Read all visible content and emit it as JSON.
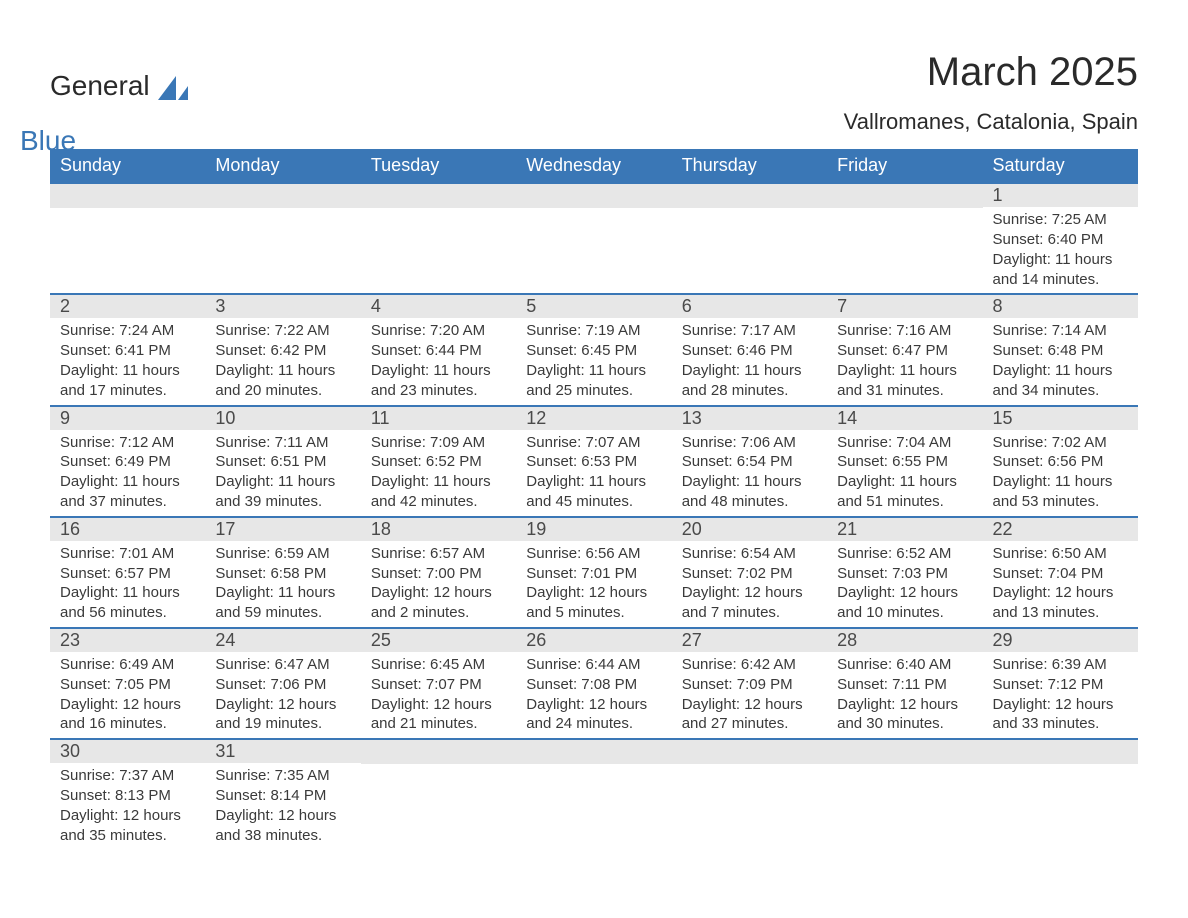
{
  "logo": {
    "text1": "General",
    "text2": "Blue",
    "shape_color": "#3a77b6"
  },
  "title": "March 2025",
  "subtitle": "Vallromanes, Catalonia, Spain",
  "styling": {
    "header_bg": "#3a77b6",
    "header_text_color": "#ffffff",
    "daynum_bg": "#e7e7e7",
    "daynum_color": "#4a4a4a",
    "row_border_color": "#3a77b6",
    "body_text_color": "#3a3a3a",
    "background_color": "#ffffff",
    "title_fontsize": 40,
    "subtitle_fontsize": 22,
    "weekday_fontsize": 18,
    "detail_fontsize": 15
  },
  "weekdays": [
    "Sunday",
    "Monday",
    "Tuesday",
    "Wednesday",
    "Thursday",
    "Friday",
    "Saturday"
  ],
  "weeks": [
    [
      {
        "day": "",
        "sunrise": "",
        "sunset": "",
        "daylight1": "",
        "daylight2": ""
      },
      {
        "day": "",
        "sunrise": "",
        "sunset": "",
        "daylight1": "",
        "daylight2": ""
      },
      {
        "day": "",
        "sunrise": "",
        "sunset": "",
        "daylight1": "",
        "daylight2": ""
      },
      {
        "day": "",
        "sunrise": "",
        "sunset": "",
        "daylight1": "",
        "daylight2": ""
      },
      {
        "day": "",
        "sunrise": "",
        "sunset": "",
        "daylight1": "",
        "daylight2": ""
      },
      {
        "day": "",
        "sunrise": "",
        "sunset": "",
        "daylight1": "",
        "daylight2": ""
      },
      {
        "day": "1",
        "sunrise": "Sunrise: 7:25 AM",
        "sunset": "Sunset: 6:40 PM",
        "daylight1": "Daylight: 11 hours",
        "daylight2": "and 14 minutes."
      }
    ],
    [
      {
        "day": "2",
        "sunrise": "Sunrise: 7:24 AM",
        "sunset": "Sunset: 6:41 PM",
        "daylight1": "Daylight: 11 hours",
        "daylight2": "and 17 minutes."
      },
      {
        "day": "3",
        "sunrise": "Sunrise: 7:22 AM",
        "sunset": "Sunset: 6:42 PM",
        "daylight1": "Daylight: 11 hours",
        "daylight2": "and 20 minutes."
      },
      {
        "day": "4",
        "sunrise": "Sunrise: 7:20 AM",
        "sunset": "Sunset: 6:44 PM",
        "daylight1": "Daylight: 11 hours",
        "daylight2": "and 23 minutes."
      },
      {
        "day": "5",
        "sunrise": "Sunrise: 7:19 AM",
        "sunset": "Sunset: 6:45 PM",
        "daylight1": "Daylight: 11 hours",
        "daylight2": "and 25 minutes."
      },
      {
        "day": "6",
        "sunrise": "Sunrise: 7:17 AM",
        "sunset": "Sunset: 6:46 PM",
        "daylight1": "Daylight: 11 hours",
        "daylight2": "and 28 minutes."
      },
      {
        "day": "7",
        "sunrise": "Sunrise: 7:16 AM",
        "sunset": "Sunset: 6:47 PM",
        "daylight1": "Daylight: 11 hours",
        "daylight2": "and 31 minutes."
      },
      {
        "day": "8",
        "sunrise": "Sunrise: 7:14 AM",
        "sunset": "Sunset: 6:48 PM",
        "daylight1": "Daylight: 11 hours",
        "daylight2": "and 34 minutes."
      }
    ],
    [
      {
        "day": "9",
        "sunrise": "Sunrise: 7:12 AM",
        "sunset": "Sunset: 6:49 PM",
        "daylight1": "Daylight: 11 hours",
        "daylight2": "and 37 minutes."
      },
      {
        "day": "10",
        "sunrise": "Sunrise: 7:11 AM",
        "sunset": "Sunset: 6:51 PM",
        "daylight1": "Daylight: 11 hours",
        "daylight2": "and 39 minutes."
      },
      {
        "day": "11",
        "sunrise": "Sunrise: 7:09 AM",
        "sunset": "Sunset: 6:52 PM",
        "daylight1": "Daylight: 11 hours",
        "daylight2": "and 42 minutes."
      },
      {
        "day": "12",
        "sunrise": "Sunrise: 7:07 AM",
        "sunset": "Sunset: 6:53 PM",
        "daylight1": "Daylight: 11 hours",
        "daylight2": "and 45 minutes."
      },
      {
        "day": "13",
        "sunrise": "Sunrise: 7:06 AM",
        "sunset": "Sunset: 6:54 PM",
        "daylight1": "Daylight: 11 hours",
        "daylight2": "and 48 minutes."
      },
      {
        "day": "14",
        "sunrise": "Sunrise: 7:04 AM",
        "sunset": "Sunset: 6:55 PM",
        "daylight1": "Daylight: 11 hours",
        "daylight2": "and 51 minutes."
      },
      {
        "day": "15",
        "sunrise": "Sunrise: 7:02 AM",
        "sunset": "Sunset: 6:56 PM",
        "daylight1": "Daylight: 11 hours",
        "daylight2": "and 53 minutes."
      }
    ],
    [
      {
        "day": "16",
        "sunrise": "Sunrise: 7:01 AM",
        "sunset": "Sunset: 6:57 PM",
        "daylight1": "Daylight: 11 hours",
        "daylight2": "and 56 minutes."
      },
      {
        "day": "17",
        "sunrise": "Sunrise: 6:59 AM",
        "sunset": "Sunset: 6:58 PM",
        "daylight1": "Daylight: 11 hours",
        "daylight2": "and 59 minutes."
      },
      {
        "day": "18",
        "sunrise": "Sunrise: 6:57 AM",
        "sunset": "Sunset: 7:00 PM",
        "daylight1": "Daylight: 12 hours",
        "daylight2": "and 2 minutes."
      },
      {
        "day": "19",
        "sunrise": "Sunrise: 6:56 AM",
        "sunset": "Sunset: 7:01 PM",
        "daylight1": "Daylight: 12 hours",
        "daylight2": "and 5 minutes."
      },
      {
        "day": "20",
        "sunrise": "Sunrise: 6:54 AM",
        "sunset": "Sunset: 7:02 PM",
        "daylight1": "Daylight: 12 hours",
        "daylight2": "and 7 minutes."
      },
      {
        "day": "21",
        "sunrise": "Sunrise: 6:52 AM",
        "sunset": "Sunset: 7:03 PM",
        "daylight1": "Daylight: 12 hours",
        "daylight2": "and 10 minutes."
      },
      {
        "day": "22",
        "sunrise": "Sunrise: 6:50 AM",
        "sunset": "Sunset: 7:04 PM",
        "daylight1": "Daylight: 12 hours",
        "daylight2": "and 13 minutes."
      }
    ],
    [
      {
        "day": "23",
        "sunrise": "Sunrise: 6:49 AM",
        "sunset": "Sunset: 7:05 PM",
        "daylight1": "Daylight: 12 hours",
        "daylight2": "and 16 minutes."
      },
      {
        "day": "24",
        "sunrise": "Sunrise: 6:47 AM",
        "sunset": "Sunset: 7:06 PM",
        "daylight1": "Daylight: 12 hours",
        "daylight2": "and 19 minutes."
      },
      {
        "day": "25",
        "sunrise": "Sunrise: 6:45 AM",
        "sunset": "Sunset: 7:07 PM",
        "daylight1": "Daylight: 12 hours",
        "daylight2": "and 21 minutes."
      },
      {
        "day": "26",
        "sunrise": "Sunrise: 6:44 AM",
        "sunset": "Sunset: 7:08 PM",
        "daylight1": "Daylight: 12 hours",
        "daylight2": "and 24 minutes."
      },
      {
        "day": "27",
        "sunrise": "Sunrise: 6:42 AM",
        "sunset": "Sunset: 7:09 PM",
        "daylight1": "Daylight: 12 hours",
        "daylight2": "and 27 minutes."
      },
      {
        "day": "28",
        "sunrise": "Sunrise: 6:40 AM",
        "sunset": "Sunset: 7:11 PM",
        "daylight1": "Daylight: 12 hours",
        "daylight2": "and 30 minutes."
      },
      {
        "day": "29",
        "sunrise": "Sunrise: 6:39 AM",
        "sunset": "Sunset: 7:12 PM",
        "daylight1": "Daylight: 12 hours",
        "daylight2": "and 33 minutes."
      }
    ],
    [
      {
        "day": "30",
        "sunrise": "Sunrise: 7:37 AM",
        "sunset": "Sunset: 8:13 PM",
        "daylight1": "Daylight: 12 hours",
        "daylight2": "and 35 minutes."
      },
      {
        "day": "31",
        "sunrise": "Sunrise: 7:35 AM",
        "sunset": "Sunset: 8:14 PM",
        "daylight1": "Daylight: 12 hours",
        "daylight2": "and 38 minutes."
      },
      {
        "day": "",
        "sunrise": "",
        "sunset": "",
        "daylight1": "",
        "daylight2": ""
      },
      {
        "day": "",
        "sunrise": "",
        "sunset": "",
        "daylight1": "",
        "daylight2": ""
      },
      {
        "day": "",
        "sunrise": "",
        "sunset": "",
        "daylight1": "",
        "daylight2": ""
      },
      {
        "day": "",
        "sunrise": "",
        "sunset": "",
        "daylight1": "",
        "daylight2": ""
      },
      {
        "day": "",
        "sunrise": "",
        "sunset": "",
        "daylight1": "",
        "daylight2": ""
      }
    ]
  ]
}
